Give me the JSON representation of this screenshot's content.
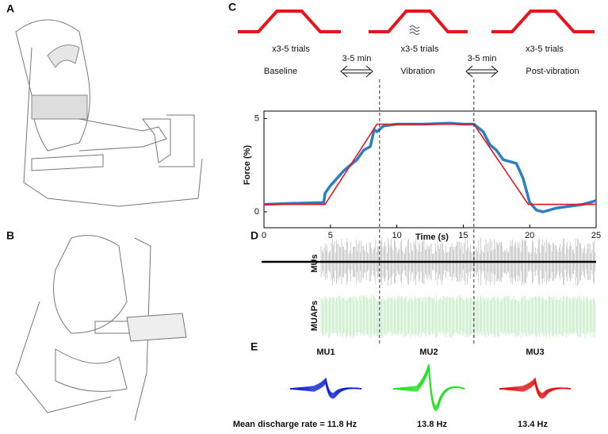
{
  "panels": {
    "a": "A",
    "b": "B",
    "c": "C",
    "d": "D",
    "e": "E"
  },
  "protocol": {
    "trials": [
      "x3-5 trials",
      "x3-5 trials",
      "x3-5 trials"
    ],
    "phases": [
      "Baseline",
      "Vibration",
      "Post-vibration"
    ],
    "rests": [
      "3-5 min",
      "3-5 min"
    ],
    "color": "#e8141b"
  },
  "chart_data": {
    "type": "line",
    "xlabel": "Time (s)",
    "ylabel": "Force (%)",
    "xlim": [
      0,
      25
    ],
    "ylim": [
      -0.85,
      5.4
    ],
    "xticks": [
      0,
      5,
      10,
      15,
      20,
      25
    ],
    "yticks": [
      0,
      5
    ],
    "phase_boundaries": [
      8.7,
      15.8
    ],
    "series": [
      {
        "color": "#2a7fc4",
        "x": [
          0,
          2,
          4.5,
          4.6,
          5,
          6,
          7,
          7.5,
          8,
          8.3,
          8.5,
          9,
          10,
          12,
          14,
          15,
          15.8,
          16.5,
          17,
          17.5,
          18,
          19,
          19.5,
          20,
          20.5,
          21,
          22,
          23,
          24,
          25
        ],
        "values": [
          0.4,
          0.45,
          0.5,
          1.0,
          1.4,
          2.2,
          2.8,
          3.3,
          3.5,
          4.4,
          4.3,
          4.6,
          4.7,
          4.7,
          4.75,
          4.7,
          4.7,
          4.3,
          3.6,
          3.3,
          2.8,
          2.6,
          1.8,
          0.5,
          0.1,
          0.0,
          0.2,
          0.3,
          0.4,
          0.6
        ]
      },
      {
        "color": "#e8141b",
        "x": [
          0,
          4.6,
          8.5,
          15.8,
          19.9,
          25
        ],
        "values": [
          0.4,
          0.4,
          4.7,
          4.7,
          0.4,
          0.4
        ]
      }
    ]
  },
  "raster": {
    "labels": [
      "MUs",
      "MUAPs"
    ]
  },
  "units": {
    "names": [
      "MU1",
      "MU2",
      "MU3"
    ],
    "rates": [
      "Mean discharge rate = 11.8 Hz",
      "13.8 Hz",
      "13.4 Hz"
    ],
    "colors": [
      "#1020d0",
      "#20e020",
      "#e01010"
    ]
  }
}
